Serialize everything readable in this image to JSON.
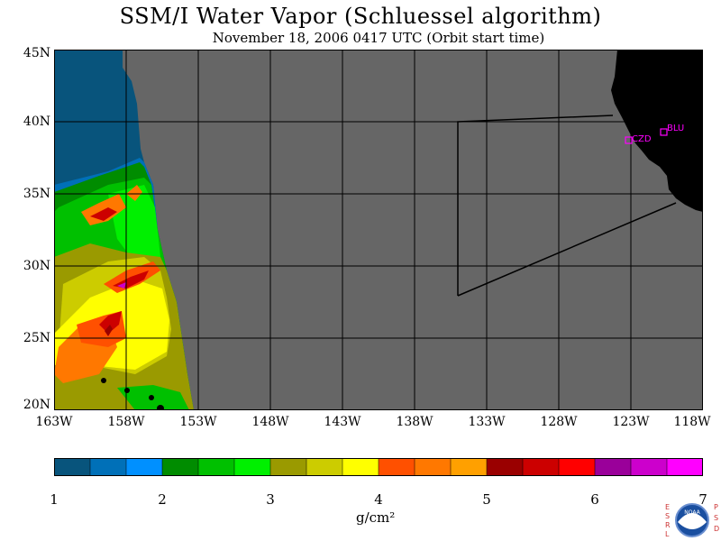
{
  "title": "SSM/I Water Vapor (Schluessel algorithm)",
  "subtitle": "November 18, 2006  0417 UTC  (Orbit start time)",
  "map": {
    "lat_labels": [
      "45N",
      "40N",
      "35N",
      "30N",
      "25N",
      "20N"
    ],
    "lon_labels": [
      "163W",
      "158W",
      "153W",
      "148W",
      "143W",
      "138W",
      "133W",
      "128W",
      "123W",
      "118W"
    ],
    "stations": [
      {
        "id": "CZD",
        "label": "CZD"
      },
      {
        "id": "BLU",
        "label": "BLU"
      }
    ],
    "colors": {
      "missing": "#666666",
      "land": "#000000",
      "grid": "#000000",
      "station": "#ff00ff"
    }
  },
  "colorbar": {
    "colors": [
      "#08547c",
      "#0070b8",
      "#0090ff",
      "#008c00",
      "#00c000",
      "#00f000",
      "#9a9a00",
      "#cccc00",
      "#ffff00",
      "#ff5000",
      "#ff7800",
      "#ffa000",
      "#9a0000",
      "#cc0000",
      "#ff0000",
      "#9a009a",
      "#cc00cc",
      "#ff00ff"
    ],
    "tick_labels": [
      "1",
      "2",
      "3",
      "4",
      "5",
      "6",
      "7"
    ],
    "units": "g/cm²"
  },
  "logo": {
    "left_text": "ESRL",
    "right_text": "PSD",
    "center_text": "NOAA"
  }
}
